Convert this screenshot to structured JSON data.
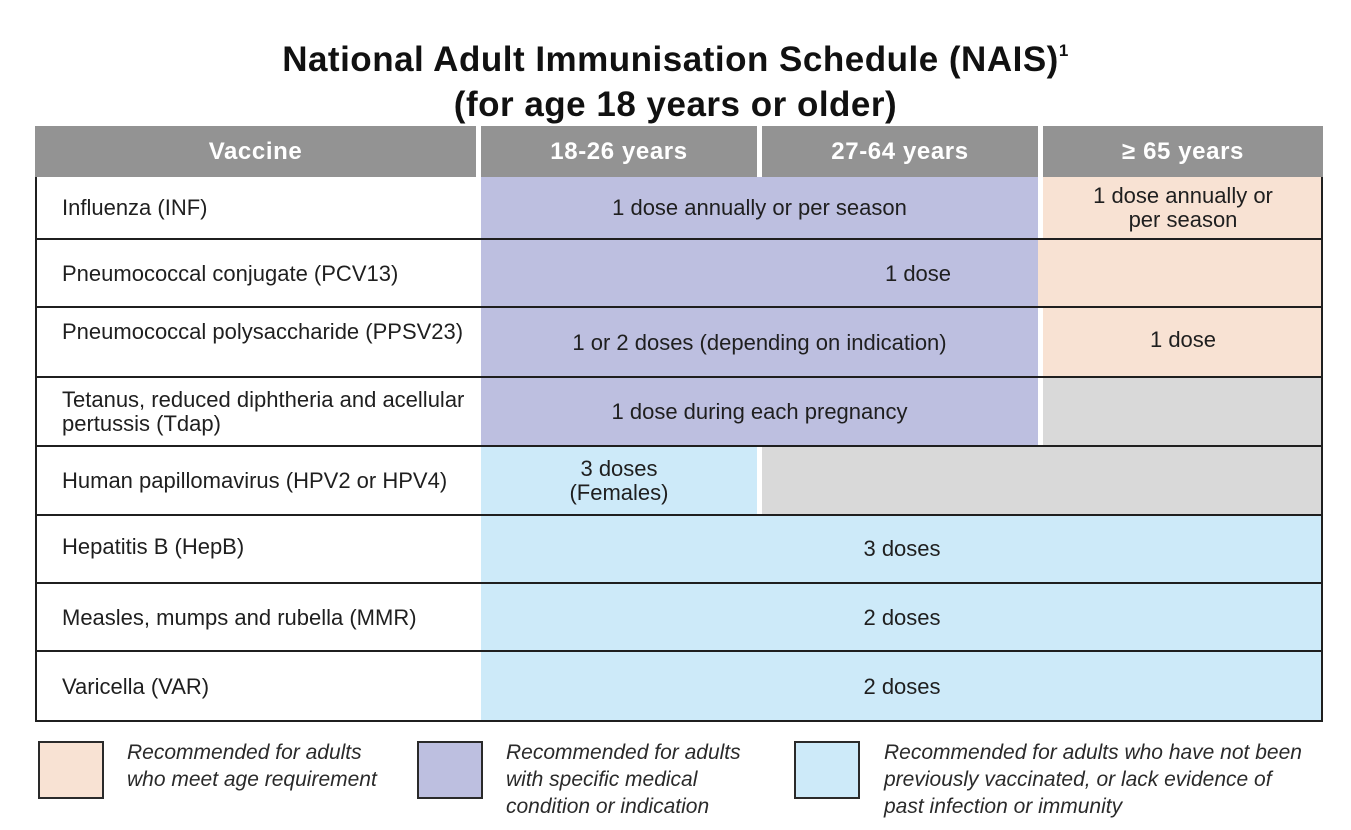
{
  "title": {
    "line1": "National Adult Immunisation Schedule (NAIS)",
    "footnote": "1",
    "line2": "(for age 18 years or older)"
  },
  "table": {
    "headers": [
      "Vaccine",
      "18-26 years",
      "27-64 years",
      "≥ 65 years"
    ],
    "rows": [
      {
        "vaccine": "Influenza (INF)",
        "cells": [
          "1 dose annually or per season",
          "1 dose annually or per season"
        ]
      },
      {
        "vaccine": "Pneumococcal conjugate (PCV13)",
        "cells": [
          "1 dose"
        ]
      },
      {
        "vaccine": "Pneumococcal polysaccharide (PPSV23)",
        "cells": [
          "1 or 2 doses (depending on indication)",
          "1 dose"
        ]
      },
      {
        "vaccine": "Tetanus, reduced diphtheria and acellular pertussis (Tdap)",
        "cells": [
          "1 dose during each pregnancy",
          ""
        ]
      },
      {
        "vaccine": "Human papillomavirus (HPV2 or HPV4)",
        "cells": [
          "3 doses (Females)",
          ""
        ]
      },
      {
        "vaccine": "Hepatitis B (HepB)",
        "cells": [
          "3 doses"
        ]
      },
      {
        "vaccine": "Measles, mumps and rubella (MMR)",
        "cells": [
          "2 doses"
        ]
      },
      {
        "vaccine": "Varicella (VAR)",
        "cells": [
          "2 doses"
        ]
      }
    ]
  },
  "legend": [
    {
      "color": "#f8e2d3",
      "text": "Recommended for adults who meet age requirement"
    },
    {
      "color": "#bdbfe0",
      "text": "Recommended for adults with specific medical condition or indication"
    },
    {
      "color": "#cdeaf9",
      "text": "Recommended for adults who have not been previously vaccinated, or lack evidence of past infection or immunity"
    }
  ],
  "colors": {
    "header": "#939393",
    "age_requirement": "#f8e2d3",
    "medical_indication": "#bdbfe0",
    "not_vaccinated": "#cdeaf9",
    "not_applicable": "#d9d9d9"
  }
}
